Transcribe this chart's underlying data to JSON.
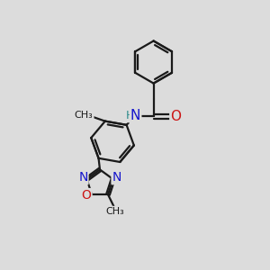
{
  "bg_color": "#dcdcdc",
  "bond_color": "#1a1a1a",
  "bond_width": 1.6,
  "atom_colors": {
    "C": "#1a1a1a",
    "N": "#1515cc",
    "O": "#cc1515",
    "H": "#2a8a8a",
    "NH": "#1515cc"
  },
  "font_size": 10,
  "figsize": [
    3.0,
    3.0
  ],
  "dpi": 100
}
